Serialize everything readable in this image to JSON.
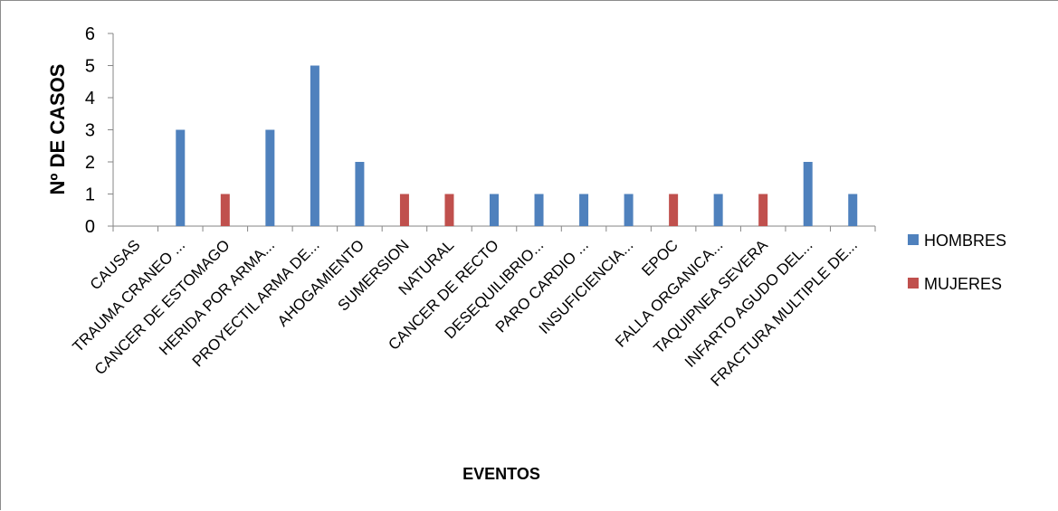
{
  "chart_data": {
    "type": "bar",
    "title": "",
    "xlabel": "EVENTOS",
    "ylabel": "Nº DE CASOS",
    "ylim": [
      0,
      6
    ],
    "yticks": [
      0,
      1,
      2,
      3,
      4,
      5,
      6
    ],
    "grid": false,
    "legend_position": "right",
    "categories": [
      "CAUSAS",
      "TRAUMA CRANEO ...",
      "CANCER DE ESTOMAGO",
      "HERIDA POR ARMA...",
      "PROYECTIL ARMA DE...",
      "AHOGAMIENTO",
      "SUMERSION",
      "NATURAL",
      "CANCER DE RECTO",
      "DESEQUILIBRIO...",
      "PARO CARDIO ...",
      "INSUFICIENCIA...",
      "EPOC",
      "FALLA ORGANICA...",
      "TAQUIPNEA SEVERA",
      "INFARTO AGUDO DEL...",
      "FRACTURA MULTIPLE DE..."
    ],
    "series": [
      {
        "name": "HOMBRES",
        "color": "#4F81BD",
        "values": [
          null,
          3,
          null,
          3,
          5,
          2,
          null,
          null,
          1,
          1,
          1,
          1,
          null,
          1,
          null,
          2,
          1
        ]
      },
      {
        "name": "MUJERES",
        "color": "#C0504D",
        "values": [
          null,
          null,
          1,
          null,
          null,
          null,
          1,
          1,
          null,
          null,
          null,
          null,
          1,
          null,
          1,
          null,
          null
        ]
      }
    ]
  }
}
